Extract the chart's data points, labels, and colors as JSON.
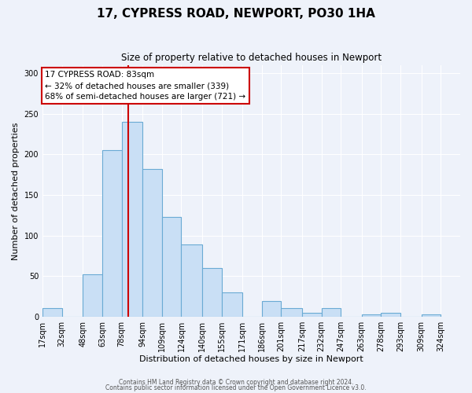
{
  "title": "17, CYPRESS ROAD, NEWPORT, PO30 1HA",
  "subtitle": "Size of property relative to detached houses in Newport",
  "xlabel": "Distribution of detached houses by size in Newport",
  "ylabel": "Number of detached properties",
  "bar_color": "#c9dff5",
  "bar_edge_color": "#6aaad4",
  "bg_color": "#eef2fa",
  "grid_color": "#ffffff",
  "categories": [
    "17sqm",
    "32sqm",
    "48sqm",
    "63sqm",
    "78sqm",
    "94sqm",
    "109sqm",
    "124sqm",
    "140sqm",
    "155sqm",
    "171sqm",
    "186sqm",
    "201sqm",
    "217sqm",
    "232sqm",
    "247sqm",
    "263sqm",
    "278sqm",
    "293sqm",
    "309sqm",
    "324sqm"
  ],
  "bar_left_edges": [
    17,
    32,
    48,
    63,
    78,
    94,
    109,
    124,
    140,
    155,
    171,
    186,
    201,
    217,
    232,
    247,
    263,
    278,
    293,
    309
  ],
  "bar_widths": [
    15,
    16,
    15,
    15,
    16,
    15,
    15,
    16,
    15,
    16,
    15,
    15,
    16,
    15,
    15,
    16,
    15,
    15,
    16,
    15
  ],
  "bar_heights": [
    10,
    0,
    52,
    205,
    240,
    182,
    123,
    89,
    60,
    30,
    0,
    19,
    10,
    5,
    10,
    0,
    3,
    5,
    0,
    3
  ],
  "vline_x": 83,
  "vline_color": "#cc0000",
  "annotation_text": "17 CYPRESS ROAD: 83sqm\n← 32% of detached houses are smaller (339)\n68% of semi-detached houses are larger (721) →",
  "annotation_box_color": "#ffffff",
  "annotation_box_edge_color": "#cc0000",
  "ylim": [
    0,
    310
  ],
  "yticks": [
    0,
    50,
    100,
    150,
    200,
    250,
    300
  ],
  "xlim_left": 17,
  "xlim_right": 339,
  "tick_positions": [
    17,
    32,
    48,
    63,
    78,
    94,
    109,
    124,
    140,
    155,
    171,
    186,
    201,
    217,
    232,
    247,
    263,
    278,
    293,
    309,
    324
  ],
  "footnote1": "Contains HM Land Registry data © Crown copyright and database right 2024.",
  "footnote2": "Contains public sector information licensed under the Open Government Licence v3.0."
}
